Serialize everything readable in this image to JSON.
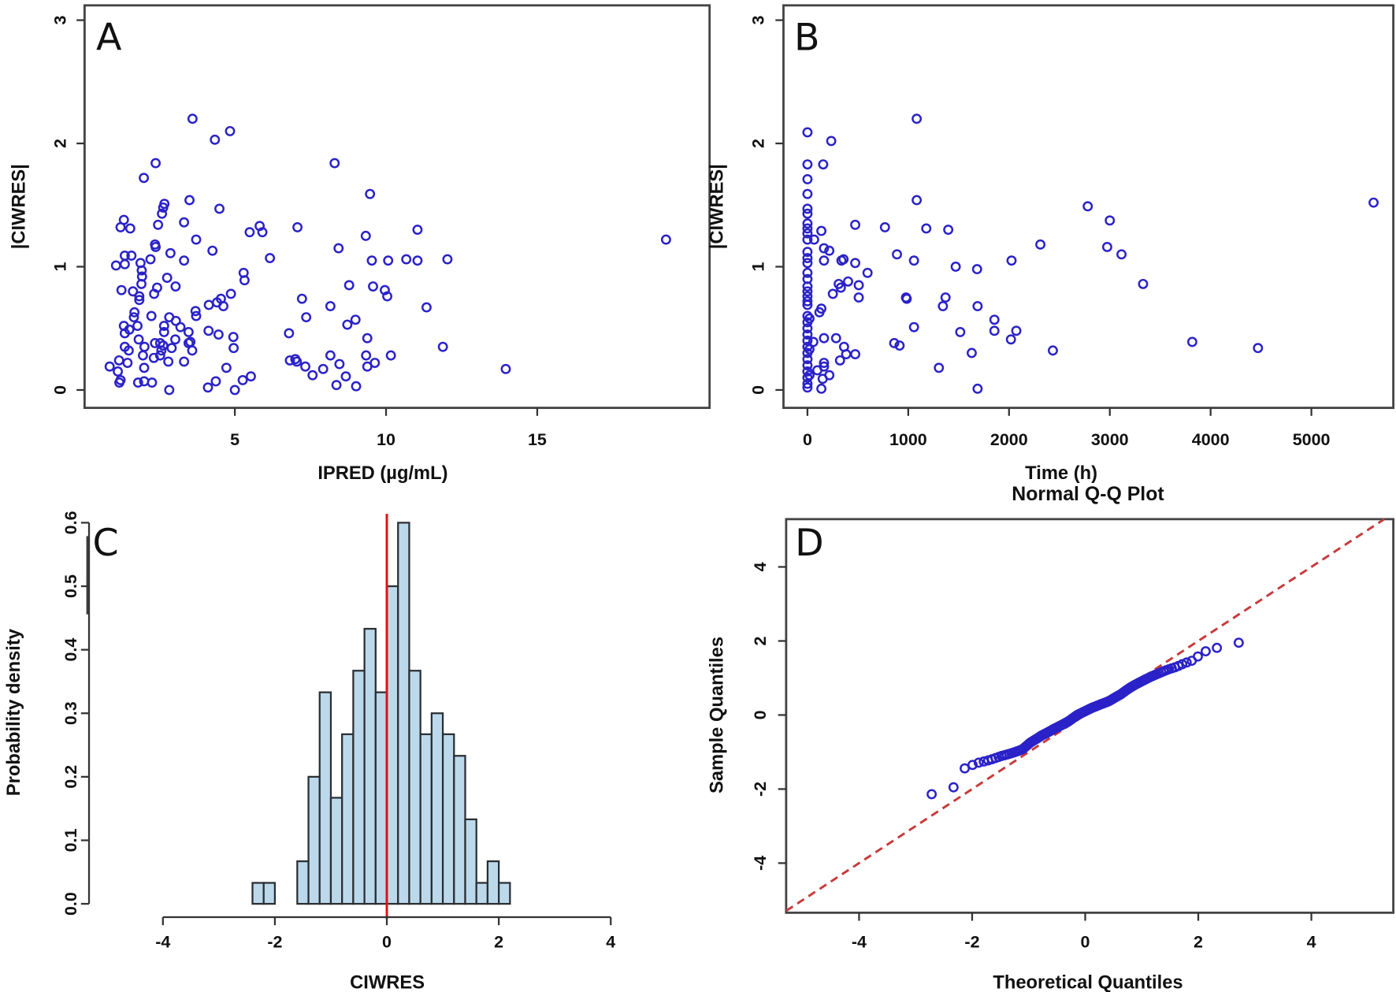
{
  "colors": {
    "points": "#2a22c8",
    "bars": "#bcd9ec",
    "bar_edge": "#2b2f33",
    "zero_line": "#e01010",
    "identity_line": "#c83a3a"
  },
  "chart_data": [
    {
      "panel": "A",
      "type": "scatter",
      "xlabel": "IPRED (µg/mL)",
      "ylabel": "|CIWRES|",
      "xticks": [
        5,
        10,
        15
      ],
      "yticks": [
        0,
        1,
        2,
        3
      ],
      "xlim": [
        0.03,
        20.7
      ],
      "ylim": [
        -0.145,
        3.12
      ],
      "points": [
        [
          3.6,
          2.2
        ],
        [
          4.34,
          2.03
        ],
        [
          4.84,
          2.1
        ],
        [
          2.38,
          1.84
        ],
        [
          8.3,
          1.84
        ],
        [
          1.99,
          1.72
        ],
        [
          9.47,
          1.59
        ],
        [
          3.5,
          1.54
        ],
        [
          2.67,
          1.51
        ],
        [
          2.63,
          1.48
        ],
        [
          2.59,
          1.43
        ],
        [
          4.49,
          1.47
        ],
        [
          1.33,
          1.38
        ],
        [
          1.22,
          1.32
        ],
        [
          1.54,
          1.31
        ],
        [
          2.46,
          1.34
        ],
        [
          3.32,
          1.36
        ],
        [
          5.82,
          1.33
        ],
        [
          5.49,
          1.28
        ],
        [
          5.91,
          1.28
        ],
        [
          7.07,
          1.32
        ],
        [
          11.04,
          1.3
        ],
        [
          9.33,
          1.25
        ],
        [
          3.72,
          1.22
        ],
        [
          2.36,
          1.18
        ],
        [
          2.38,
          1.16
        ],
        [
          4.26,
          1.13
        ],
        [
          8.43,
          1.15
        ],
        [
          2.87,
          1.11
        ],
        [
          1.36,
          1.09
        ],
        [
          1.58,
          1.09
        ],
        [
          6.16,
          1.07
        ],
        [
          2.21,
          1.06
        ],
        [
          3.32,
          1.05
        ],
        [
          1.88,
          1.03
        ],
        [
          1.07,
          1.01
        ],
        [
          1.36,
          1.02
        ],
        [
          9.53,
          1.05
        ],
        [
          10.07,
          1.05
        ],
        [
          10.67,
          1.06
        ],
        [
          11.04,
          1.05
        ],
        [
          12.03,
          1.06
        ],
        [
          1.92,
          0.97
        ],
        [
          5.29,
          0.95
        ],
        [
          5.32,
          0.89
        ],
        [
          2.76,
          0.91
        ],
        [
          1.93,
          0.92
        ],
        [
          1.91,
          0.86
        ],
        [
          8.78,
          0.85
        ],
        [
          2.43,
          0.83
        ],
        [
          3.04,
          0.84
        ],
        [
          1.25,
          0.81
        ],
        [
          1.63,
          0.8
        ],
        [
          9.57,
          0.84
        ],
        [
          9.96,
          0.81
        ],
        [
          10.04,
          0.76
        ],
        [
          2.33,
          0.78
        ],
        [
          4.87,
          0.78
        ],
        [
          1.84,
          0.76
        ],
        [
          1.84,
          0.73
        ],
        [
          7.22,
          0.74
        ],
        [
          4.54,
          0.74
        ],
        [
          4.41,
          0.71
        ],
        [
          4.62,
          0.68
        ],
        [
          4.14,
          0.69
        ],
        [
          8.16,
          0.68
        ],
        [
          11.34,
          0.67
        ],
        [
          1.68,
          0.63
        ],
        [
          1.66,
          0.59
        ],
        [
          2.24,
          0.6
        ],
        [
          3.7,
          0.64
        ],
        [
          3.72,
          0.6
        ],
        [
          2.83,
          0.59
        ],
        [
          3.05,
          0.56
        ],
        [
          3.2,
          0.51
        ],
        [
          7.36,
          0.59
        ],
        [
          8.99,
          0.57
        ],
        [
          8.72,
          0.53
        ],
        [
          1.33,
          0.52
        ],
        [
          1.78,
          0.52
        ],
        [
          1.51,
          0.49
        ],
        [
          1.36,
          0.46
        ],
        [
          2.66,
          0.52
        ],
        [
          2.66,
          0.47
        ],
        [
          3.47,
          0.47
        ],
        [
          4.13,
          0.48
        ],
        [
          4.46,
          0.45
        ],
        [
          6.79,
          0.46
        ],
        [
          4.95,
          0.43
        ],
        [
          1.82,
          0.41
        ],
        [
          3.03,
          0.41
        ],
        [
          9.38,
          0.42
        ],
        [
          3.53,
          0.39
        ],
        [
          2.36,
          0.38
        ],
        [
          2.53,
          0.38
        ],
        [
          3.47,
          0.38
        ],
        [
          2.63,
          0.36
        ],
        [
          2.01,
          0.35
        ],
        [
          1.36,
          0.35
        ],
        [
          4.96,
          0.34
        ],
        [
          11.88,
          0.35
        ],
        [
          1.49,
          0.32
        ],
        [
          2.91,
          0.34
        ],
        [
          2.57,
          0.32
        ],
        [
          3.59,
          0.32
        ],
        [
          2.53,
          0.28
        ],
        [
          1.96,
          0.28
        ],
        [
          2.32,
          0.26
        ],
        [
          8.16,
          0.28
        ],
        [
          10.16,
          0.28
        ],
        [
          9.34,
          0.28
        ],
        [
          6.82,
          0.24
        ],
        [
          7.0,
          0.25
        ],
        [
          7.05,
          0.23
        ],
        [
          1.17,
          0.24
        ],
        [
          2.8,
          0.23
        ],
        [
          3.32,
          0.23
        ],
        [
          1.45,
          0.22
        ],
        [
          9.63,
          0.22
        ],
        [
          0.86,
          0.19
        ],
        [
          8.46,
          0.21
        ],
        [
          9.38,
          0.19
        ],
        [
          7.33,
          0.19
        ],
        [
          2.0,
          0.18
        ],
        [
          4.72,
          0.18
        ],
        [
          7.92,
          0.17
        ],
        [
          13.96,
          0.17
        ],
        [
          1.13,
          0.15
        ],
        [
          7.57,
          0.12
        ],
        [
          5.53,
          0.11
        ],
        [
          5.26,
          0.08
        ],
        [
          8.67,
          0.11
        ],
        [
          1.22,
          0.08
        ],
        [
          1.18,
          0.06
        ],
        [
          1.8,
          0.06
        ],
        [
          2.0,
          0.07
        ],
        [
          2.26,
          0.06
        ],
        [
          4.37,
          0.07
        ],
        [
          8.36,
          0.04
        ],
        [
          4.11,
          0.02
        ],
        [
          5.0,
          0.0
        ],
        [
          2.83,
          0.0
        ],
        [
          9.01,
          0.03
        ],
        [
          19.26,
          1.22
        ]
      ]
    },
    {
      "panel": "B",
      "type": "scatter",
      "xlabel": "Time (h)",
      "ylabel": "|CIWRES|",
      "xticks": [
        0,
        1000,
        2000,
        3000,
        4000,
        5000
      ],
      "yticks": [
        0,
        1,
        2,
        3
      ],
      "xlim": [
        -238,
        5813
      ],
      "ylim": [
        -0.145,
        3.12
      ],
      "points": [
        [
          1084,
          2.2
        ],
        [
          0,
          2.09
        ],
        [
          236,
          2.02
        ],
        [
          0,
          1.83
        ],
        [
          156,
          1.83
        ],
        [
          0,
          1.71
        ],
        [
          0,
          1.59
        ],
        [
          1084,
          1.54
        ],
        [
          0,
          1.47
        ],
        [
          0,
          1.43
        ],
        [
          0,
          1.35
        ],
        [
          0,
          1.31
        ],
        [
          0,
          1.27
        ],
        [
          0,
          1.22
        ],
        [
          138,
          1.29
        ],
        [
          474,
          1.34
        ],
        [
          769,
          1.32
        ],
        [
          1179,
          1.31
        ],
        [
          1397,
          1.3
        ],
        [
          66,
          1.22
        ],
        [
          2311,
          1.18
        ],
        [
          164,
          1.15
        ],
        [
          217,
          1.13
        ],
        [
          0,
          1.12
        ],
        [
          0,
          1.07
        ],
        [
          0,
          1.03
        ],
        [
          164,
          1.05
        ],
        [
          337,
          1.05
        ],
        [
          358,
          1.06
        ],
        [
          474,
          1.03
        ],
        [
          888,
          1.1
        ],
        [
          1057,
          1.05
        ],
        [
          2025,
          1.05
        ],
        [
          1471,
          1.0
        ],
        [
          1683,
          0.98
        ],
        [
          596,
          0.95
        ],
        [
          0,
          0.95
        ],
        [
          0,
          0.9
        ],
        [
          403,
          0.88
        ],
        [
          310,
          0.86
        ],
        [
          331,
          0.83
        ],
        [
          509,
          0.85
        ],
        [
          252,
          0.78
        ],
        [
          0,
          0.84
        ],
        [
          0,
          0.8
        ],
        [
          0,
          0.76
        ],
        [
          0,
          0.72
        ],
        [
          0,
          0.69
        ],
        [
          978,
          0.75
        ],
        [
          985,
          0.74
        ],
        [
          509,
          0.75
        ],
        [
          1370,
          0.75
        ],
        [
          1344,
          0.68
        ],
        [
          1688,
          0.68
        ],
        [
          138,
          0.66
        ],
        [
          119,
          0.63
        ],
        [
          0,
          0.6
        ],
        [
          0,
          0.55
        ],
        [
          0,
          0.5
        ],
        [
          0,
          0.45
        ],
        [
          0,
          0.4
        ],
        [
          0,
          0.35
        ],
        [
          0,
          0.3
        ],
        [
          0,
          0.25
        ],
        [
          0,
          0.2
        ],
        [
          0,
          0.15
        ],
        [
          0,
          0.1
        ],
        [
          0,
          0.05
        ],
        [
          0,
          0.02
        ],
        [
          20,
          0.58
        ],
        [
          20,
          0.33
        ],
        [
          20,
          0.12
        ],
        [
          1855,
          0.57
        ],
        [
          1057,
          0.51
        ],
        [
          1855,
          0.48
        ],
        [
          2072,
          0.48
        ],
        [
          1516,
          0.47
        ],
        [
          2019,
          0.41
        ],
        [
          164,
          0.42
        ],
        [
          284,
          0.42
        ],
        [
          58,
          0.39
        ],
        [
          861,
          0.38
        ],
        [
          914,
          0.36
        ],
        [
          363,
          0.35
        ],
        [
          2435,
          0.32
        ],
        [
          1630,
          0.3
        ],
        [
          384,
          0.29
        ],
        [
          474,
          0.29
        ],
        [
          323,
          0.24
        ],
        [
          164,
          0.22
        ],
        [
          164,
          0.19
        ],
        [
          1304,
          0.18
        ],
        [
          98,
          0.16
        ],
        [
          217,
          0.12
        ],
        [
          151,
          0.09
        ],
        [
          138,
          0.01
        ],
        [
          1688,
          0.01
        ],
        [
          2781,
          1.49
        ],
        [
          3000,
          1.375
        ],
        [
          2974,
          1.16
        ],
        [
          3116,
          1.1
        ],
        [
          3330,
          0.86
        ],
        [
          3818,
          0.39
        ],
        [
          4470,
          0.34
        ],
        [
          5617,
          1.52
        ]
      ]
    },
    {
      "panel": "C",
      "type": "bar",
      "subtype": "histogram",
      "xlabel": "CIWRES",
      "ylabel": "Probability density",
      "xticks": [
        -4,
        -2,
        0,
        2,
        4
      ],
      "yticks": [
        "0.0",
        "0.1",
        "0.2",
        "0.3",
        "0.4",
        "0.5",
        "0.6"
      ],
      "xlim": [
        -4,
        4
      ],
      "ylim": [
        0,
        0.6
      ],
      "bin_width": 0.2,
      "bin_starts": [
        -2.4,
        -2.2,
        -2.0,
        -1.8,
        -1.6,
        -1.4,
        -1.2,
        -1.0,
        -0.8,
        -0.6,
        -0.4,
        -0.2,
        0.0,
        0.2,
        0.4,
        0.6,
        0.8,
        1.0,
        1.2,
        1.4,
        1.6,
        1.8,
        2.0
      ],
      "density": [
        0.033,
        0.033,
        0,
        0,
        0.067,
        0.2,
        0.333,
        0.167,
        0.267,
        0.367,
        0.433,
        0.333,
        0.5,
        0.6,
        0.367,
        0.267,
        0.3,
        0.267,
        0.233,
        0.133,
        0.033,
        0.067,
        0.033
      ],
      "reference_line_x": 0
    },
    {
      "panel": "D",
      "type": "scatter",
      "subtype": "qq",
      "title": "Normal Q-Q Plot",
      "xlabel": "Theoretical Quantiles",
      "ylabel": "Sample Quantiles",
      "xticks": [
        -4,
        -2,
        0,
        2,
        4
      ],
      "yticks": [
        -4,
        -2,
        0,
        2,
        4
      ],
      "xlim": [
        -5.29,
        5.45
      ],
      "ylim": [
        -5.34,
        5.29
      ],
      "reference_line": "y = x (dashed)",
      "sample_source": "CIWRES values (panel C histogram)"
    }
  ]
}
